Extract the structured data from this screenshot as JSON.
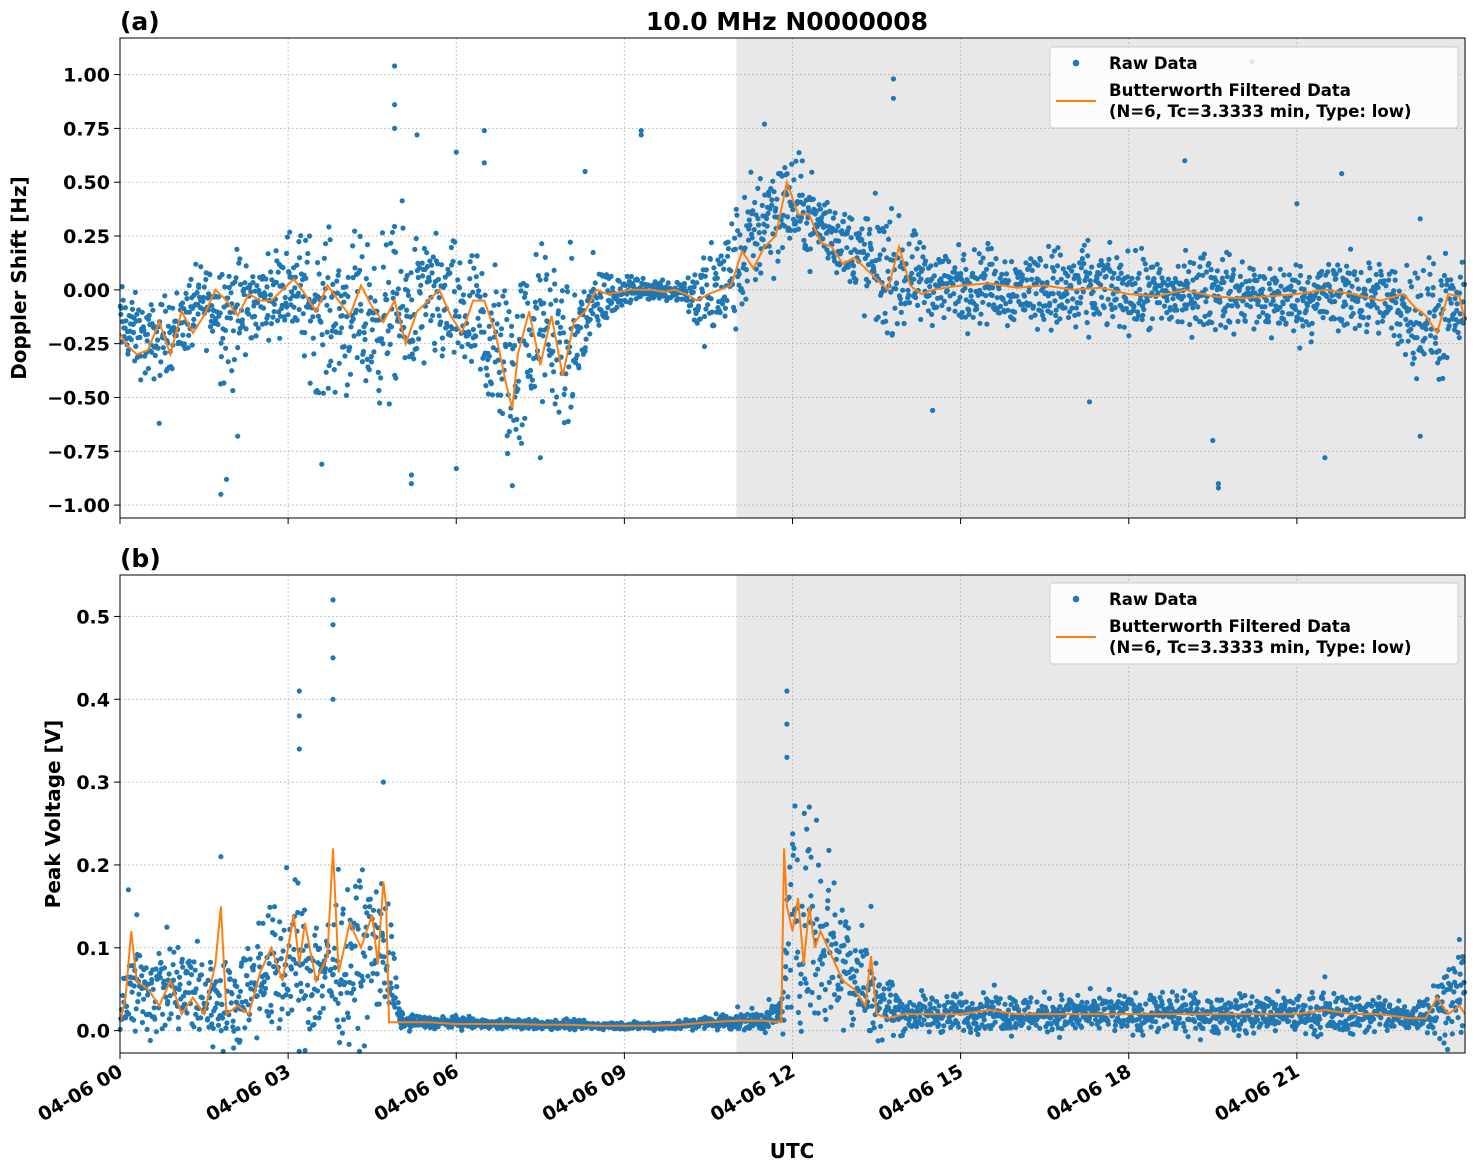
{
  "figure": {
    "title": "10.0 MHz N0000008",
    "x_axis_label": "UTC",
    "x_tick_labels": [
      "04-06 00",
      "04-06 03",
      "04-06 06",
      "04-06 09",
      "04-06 12",
      "04-06 15",
      "04-06 18",
      "04-06 21"
    ]
  },
  "chart_data": [
    {
      "type": "scatter",
      "panel_label": "(a)",
      "ylabel": "Doppler Shift [Hz]",
      "xlim_hours": [
        0,
        24
      ],
      "ylim": [
        -1.06,
        1.17
      ],
      "y_ticks": [
        -1.0,
        -0.75,
        -0.5,
        -0.25,
        0.0,
        0.25,
        0.5,
        0.75,
        1.0
      ],
      "y_tick_labels": [
        "−1.00",
        "−0.75",
        "−0.50",
        "−0.25",
        "0.00",
        "0.25",
        "0.50",
        "0.75",
        "1.00"
      ],
      "shaded_region_hours": [
        11.0,
        24.0
      ],
      "grid": true,
      "legend_position": "top-right",
      "legend": {
        "raw": "Raw Data",
        "filtered_line1": "Butterworth Filtered Data",
        "filtered_line2": "(N=6, Tc=3.3333 min, Type: low)"
      },
      "series": [
        {
          "name": "Raw Data",
          "kind": "scatter",
          "color": "#1f77b4",
          "x": [
            0,
            0.5,
            1,
            1.5,
            2,
            2.5,
            3,
            3.5,
            4,
            4.5,
            5,
            5.5,
            6,
            6.5,
            7,
            7.5,
            8,
            8.5,
            9,
            9.5,
            10,
            10.5,
            11,
            11.5,
            12,
            12.5,
            13,
            13.5,
            14,
            14.5,
            15,
            15.5,
            16,
            16.5,
            17,
            17.5,
            18,
            18.5,
            19,
            19.5,
            20,
            20.5,
            21,
            21.5,
            22,
            22.5,
            23,
            23.5,
            24
          ],
          "y_center": [
            -0.15,
            -0.25,
            -0.18,
            -0.05,
            -0.12,
            -0.05,
            0.05,
            -0.1,
            -0.12,
            -0.15,
            -0.1,
            -0.05,
            -0.1,
            -0.2,
            -0.4,
            -0.15,
            -0.3,
            -0.05,
            0.0,
            0.0,
            0.0,
            -0.05,
            0.1,
            0.35,
            0.4,
            0.3,
            0.2,
            0.1,
            0.05,
            0.02,
            0.02,
            0.03,
            0.0,
            0.02,
            -0.02,
            0.0,
            -0.01,
            -0.03,
            -0.02,
            0.0,
            -0.03,
            -0.04,
            -0.05,
            -0.03,
            -0.02,
            -0.05,
            -0.1,
            -0.15,
            -0.1
          ],
          "y_spread": [
            0.15,
            0.15,
            0.15,
            0.15,
            0.3,
            0.12,
            0.2,
            0.3,
            0.3,
            0.3,
            0.35,
            0.25,
            0.25,
            0.3,
            0.4,
            0.3,
            0.35,
            0.15,
            0.05,
            0.04,
            0.05,
            0.2,
            0.25,
            0.25,
            0.2,
            0.15,
            0.15,
            0.25,
            0.2,
            0.15,
            0.15,
            0.15,
            0.15,
            0.15,
            0.2,
            0.15,
            0.15,
            0.15,
            0.15,
            0.15,
            0.15,
            0.15,
            0.15,
            0.15,
            0.15,
            0.15,
            0.2,
            0.25,
            0.15
          ],
          "outliers": [
            [
              1.8,
              -0.95
            ],
            [
              1.9,
              -0.88
            ],
            [
              2.1,
              -0.68
            ],
            [
              0.7,
              -0.62
            ],
            [
              3.6,
              -0.81
            ],
            [
              4.9,
              1.04
            ],
            [
              4.9,
              0.86
            ],
            [
              4.9,
              0.75
            ],
            [
              5.3,
              0.72
            ],
            [
              5.2,
              -0.86
            ],
            [
              5.2,
              -0.9
            ],
            [
              6.0,
              -0.83
            ],
            [
              6.0,
              0.64
            ],
            [
              6.5,
              0.59
            ],
            [
              6.5,
              0.74
            ],
            [
              7.0,
              -0.91
            ],
            [
              7.5,
              -0.78
            ],
            [
              9.3,
              0.74
            ],
            [
              9.3,
              0.72
            ],
            [
              8.3,
              0.55
            ],
            [
              13.8,
              0.98
            ],
            [
              13.8,
              0.89
            ],
            [
              11.5,
              0.77
            ],
            [
              12.3,
              0.42
            ],
            [
              14.5,
              -0.56
            ],
            [
              17.3,
              -0.52
            ],
            [
              19.6,
              -0.92
            ],
            [
              19.6,
              -0.9
            ],
            [
              19.5,
              -0.7
            ],
            [
              21.0,
              0.4
            ],
            [
              21.8,
              0.54
            ],
            [
              21.5,
              -0.78
            ],
            [
              23.2,
              -0.68
            ],
            [
              23.2,
              0.33
            ],
            [
              20.2,
              1.06
            ],
            [
              19.0,
              0.6
            ]
          ]
        },
        {
          "name": "Butterworth Filtered Data",
          "kind": "line",
          "color": "#ff7f0e",
          "x": [
            0,
            0.1,
            0.3,
            0.5,
            0.7,
            0.9,
            1.1,
            1.3,
            1.5,
            1.7,
            1.9,
            2.1,
            2.3,
            2.5,
            2.7,
            2.9,
            3.1,
            3.3,
            3.5,
            3.7,
            3.9,
            4.1,
            4.3,
            4.5,
            4.7,
            4.9,
            5.1,
            5.3,
            5.5,
            5.7,
            5.9,
            6.1,
            6.3,
            6.5,
            6.7,
            6.9,
            7.0,
            7.1,
            7.3,
            7.5,
            7.7,
            7.9,
            8.1,
            8.3,
            8.5,
            8.7,
            8.9,
            9.1,
            9.3,
            9.5,
            9.7,
            9.9,
            10.1,
            10.3,
            10.5,
            10.7,
            10.9,
            11.1,
            11.3,
            11.5,
            11.7,
            11.9,
            12.1,
            12.3,
            12.5,
            12.7,
            12.9,
            13.1,
            13.3,
            13.5,
            13.7,
            13.9,
            14.1,
            14.3,
            14.5,
            15.0,
            15.5,
            16.0,
            16.5,
            17.0,
            17.5,
            18.0,
            18.5,
            19.0,
            19.5,
            20.0,
            20.5,
            21.0,
            21.5,
            22.0,
            22.5,
            22.9,
            23.1,
            23.3,
            23.5,
            23.7,
            23.9,
            24.0
          ],
          "y": [
            -0.2,
            -0.25,
            -0.3,
            -0.28,
            -0.15,
            -0.3,
            -0.1,
            -0.2,
            -0.12,
            0.0,
            -0.05,
            -0.12,
            -0.02,
            -0.05,
            -0.05,
            0.0,
            0.05,
            -0.02,
            -0.1,
            0.02,
            -0.05,
            -0.12,
            0.02,
            -0.08,
            -0.15,
            -0.05,
            -0.25,
            -0.1,
            -0.05,
            0.0,
            -0.12,
            -0.2,
            -0.05,
            -0.05,
            -0.2,
            -0.45,
            -0.55,
            -0.3,
            -0.1,
            -0.35,
            -0.12,
            -0.4,
            -0.15,
            -0.1,
            0.0,
            -0.02,
            -0.01,
            0.0,
            0.0,
            0.0,
            -0.01,
            0.0,
            -0.02,
            -0.05,
            -0.02,
            0.0,
            0.02,
            0.18,
            0.1,
            0.2,
            0.25,
            0.5,
            0.35,
            0.35,
            0.22,
            0.2,
            0.12,
            0.15,
            0.1,
            0.05,
            0.0,
            0.2,
            0.02,
            -0.02,
            0.0,
            0.02,
            0.03,
            0.01,
            0.02,
            0.0,
            0.01,
            -0.02,
            -0.03,
            0.0,
            -0.03,
            -0.04,
            -0.03,
            -0.02,
            0.0,
            -0.02,
            -0.05,
            -0.02,
            -0.08,
            -0.12,
            -0.2,
            -0.02,
            -0.03,
            -0.15
          ]
        }
      ]
    },
    {
      "type": "scatter",
      "panel_label": "(b)",
      "ylabel": "Peak Voltage [V]",
      "xlim_hours": [
        0,
        24
      ],
      "ylim": [
        -0.027,
        0.55
      ],
      "y_ticks": [
        0.0,
        0.1,
        0.2,
        0.3,
        0.4,
        0.5
      ],
      "y_tick_labels": [
        "0.0",
        "0.1",
        "0.2",
        "0.3",
        "0.4",
        "0.5"
      ],
      "shaded_region_hours": [
        11.0,
        24.0
      ],
      "grid": true,
      "legend_position": "top-right",
      "legend": {
        "raw": "Raw Data",
        "filtered_line1": "Butterworth Filtered Data",
        "filtered_line2": "(N=6, Tc=3.3333 min, Type: low)"
      },
      "series": [
        {
          "name": "Raw Data",
          "kind": "scatter",
          "color": "#1f77b4",
          "x": [
            0,
            0.5,
            1,
            1.5,
            2,
            2.5,
            3,
            3.5,
            4,
            4.5,
            4.75,
            5,
            5.5,
            6,
            6.5,
            7,
            7.5,
            8,
            8.5,
            9,
            9.5,
            10,
            10.5,
            11,
            11.5,
            11.8,
            12,
            12.5,
            13,
            13.5,
            14,
            14.5,
            15,
            15.5,
            16,
            16.5,
            17,
            17.5,
            18,
            18.5,
            19,
            19.5,
            20,
            20.5,
            21,
            21.5,
            22,
            22.5,
            23,
            23.5,
            24
          ],
          "y_center": [
            0.04,
            0.05,
            0.05,
            0.04,
            0.03,
            0.07,
            0.08,
            0.07,
            0.08,
            0.1,
            0.1,
            0.012,
            0.01,
            0.01,
            0.008,
            0.008,
            0.007,
            0.007,
            0.006,
            0.006,
            0.006,
            0.007,
            0.01,
            0.012,
            0.012,
            0.02,
            0.15,
            0.12,
            0.08,
            0.04,
            0.02,
            0.02,
            0.02,
            0.025,
            0.02,
            0.02,
            0.02,
            0.02,
            0.02,
            0.02,
            0.02,
            0.02,
            0.02,
            0.02,
            0.02,
            0.02,
            0.02,
            0.02,
            0.015,
            0.03,
            0.05
          ],
          "y_spread": [
            0.04,
            0.05,
            0.05,
            0.05,
            0.04,
            0.06,
            0.08,
            0.07,
            0.08,
            0.08,
            0.08,
            0.008,
            0.006,
            0.006,
            0.005,
            0.005,
            0.005,
            0.005,
            0.004,
            0.004,
            0.004,
            0.005,
            0.008,
            0.01,
            0.012,
            0.02,
            0.12,
            0.1,
            0.07,
            0.04,
            0.02,
            0.02,
            0.02,
            0.02,
            0.02,
            0.02,
            0.02,
            0.02,
            0.02,
            0.02,
            0.02,
            0.02,
            0.02,
            0.02,
            0.02,
            0.02,
            0.02,
            0.02,
            0.015,
            0.03,
            0.05
          ],
          "outliers": [
            [
              3.8,
              0.52
            ],
            [
              3.8,
              0.49
            ],
            [
              3.8,
              0.45
            ],
            [
              3.2,
              0.41
            ],
            [
              3.2,
              0.38
            ],
            [
              3.2,
              0.34
            ],
            [
              3.8,
              0.4
            ],
            [
              1.8,
              0.21
            ],
            [
              0.15,
              0.17
            ],
            [
              4.7,
              0.3
            ],
            [
              11.9,
              0.41
            ],
            [
              11.9,
              0.37
            ],
            [
              11.9,
              0.33
            ],
            [
              12.3,
              0.27
            ],
            [
              13.4,
              0.15
            ],
            [
              0.3,
              0.14
            ],
            [
              21.5,
              0.065
            ],
            [
              23.9,
              0.11
            ]
          ]
        },
        {
          "name": "Butterworth Filtered Data",
          "kind": "line",
          "color": "#ff7f0e",
          "x": [
            0,
            0.1,
            0.2,
            0.3,
            0.5,
            0.7,
            0.9,
            1.1,
            1.3,
            1.5,
            1.7,
            1.8,
            1.9,
            2.1,
            2.3,
            2.5,
            2.7,
            2.9,
            3.1,
            3.2,
            3.3,
            3.5,
            3.7,
            3.8,
            3.9,
            4.1,
            4.3,
            4.5,
            4.6,
            4.7,
            4.75,
            4.8,
            5.0,
            5.5,
            6.0,
            6.5,
            7.0,
            7.5,
            8.0,
            8.5,
            9.0,
            9.5,
            10.0,
            10.5,
            11.0,
            11.5,
            11.8,
            11.85,
            11.9,
            12.0,
            12.1,
            12.2,
            12.3,
            12.4,
            12.5,
            12.7,
            12.9,
            13.1,
            13.3,
            13.4,
            13.5,
            13.7,
            14.0,
            14.5,
            15.0,
            15.5,
            16.0,
            16.5,
            17.0,
            17.5,
            18.0,
            18.5,
            19.0,
            19.5,
            20.0,
            20.5,
            21.0,
            21.5,
            22.0,
            22.5,
            23.0,
            23.3,
            23.5,
            23.7,
            23.9,
            24.0
          ],
          "y": [
            0.01,
            0.04,
            0.12,
            0.06,
            0.05,
            0.03,
            0.06,
            0.02,
            0.04,
            0.02,
            0.08,
            0.15,
            0.02,
            0.03,
            0.02,
            0.07,
            0.1,
            0.06,
            0.14,
            0.08,
            0.13,
            0.06,
            0.09,
            0.22,
            0.07,
            0.13,
            0.1,
            0.14,
            0.08,
            0.18,
            0.15,
            0.01,
            0.01,
            0.01,
            0.008,
            0.008,
            0.008,
            0.007,
            0.007,
            0.006,
            0.006,
            0.006,
            0.007,
            0.01,
            0.012,
            0.012,
            0.01,
            0.22,
            0.15,
            0.12,
            0.16,
            0.08,
            0.15,
            0.1,
            0.12,
            0.09,
            0.06,
            0.05,
            0.03,
            0.09,
            0.02,
            0.015,
            0.02,
            0.02,
            0.02,
            0.025,
            0.02,
            0.02,
            0.02,
            0.02,
            0.02,
            0.02,
            0.02,
            0.02,
            0.02,
            0.02,
            0.02,
            0.025,
            0.02,
            0.02,
            0.015,
            0.015,
            0.04,
            0.02,
            0.03,
            0.02
          ]
        }
      ]
    }
  ]
}
